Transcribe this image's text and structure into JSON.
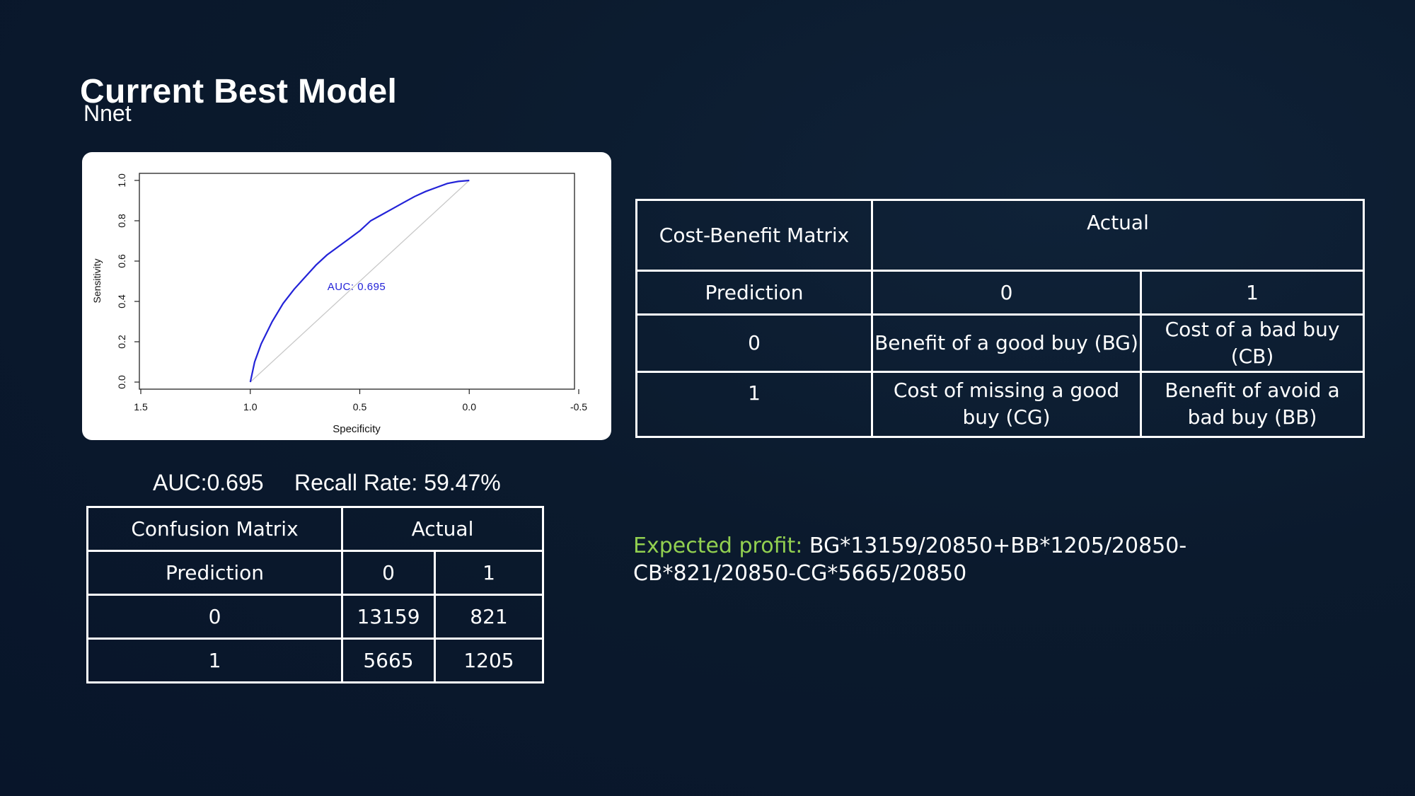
{
  "page": {
    "title": "Current Best Model",
    "subtitle": "Nnet"
  },
  "chart_data": {
    "type": "line",
    "xlabel": "Specificity",
    "ylabel": "Sensitivity",
    "xlim": [
      1.5,
      -0.5
    ],
    "ylim": [
      0.0,
      1.0
    ],
    "x_reversed": true,
    "x_ticks": [
      1.5,
      1.0,
      0.5,
      0.0,
      -0.5
    ],
    "x_tick_labels": [
      "1.5",
      "1.0",
      "0.5",
      "0.0",
      "-0.5"
    ],
    "y_ticks": [
      0.0,
      0.2,
      0.4,
      0.6,
      0.8,
      1.0
    ],
    "y_tick_labels": [
      "0.0",
      "0.2",
      "0.4",
      "0.6",
      "0.8",
      "1.0"
    ],
    "grid": false,
    "annotation": "AUC: 0.695",
    "line_color": "#2323d8",
    "diagonal_color": "#c8c8c8",
    "series": [
      {
        "x": [
          1.0,
          0.98,
          0.95,
          0.9,
          0.85,
          0.8,
          0.75,
          0.7,
          0.65,
          0.6,
          0.55,
          0.5,
          0.45,
          0.4,
          0.35,
          0.3,
          0.25,
          0.2,
          0.15,
          0.1,
          0.05,
          0.0
        ],
        "y": [
          0.0,
          0.1,
          0.19,
          0.3,
          0.39,
          0.46,
          0.52,
          0.58,
          0.63,
          0.67,
          0.71,
          0.75,
          0.8,
          0.83,
          0.86,
          0.89,
          0.92,
          0.945,
          0.965,
          0.985,
          0.995,
          1.0
        ]
      }
    ]
  },
  "metrics": {
    "auc": "AUC:0.695",
    "recall": "Recall Rate: 59.47%"
  },
  "confusion_matrix": {
    "title": "Confusion Matrix",
    "actual": "Actual",
    "prediction": "Prediction",
    "col_labels": [
      "0",
      "1"
    ],
    "rows": [
      {
        "label": "0",
        "values": [
          "13159",
          "821"
        ]
      },
      {
        "label": "1",
        "values": [
          "5665",
          "1205"
        ]
      }
    ]
  },
  "cost_benefit_matrix": {
    "title": "Cost-Benefit Matrix",
    "actual": "Actual",
    "prediction": "Prediction",
    "col_labels": [
      "0",
      "1"
    ],
    "rows": [
      {
        "label": "0",
        "values": [
          "Benefit of a good buy (BG)",
          "Cost of a bad buy (CB)"
        ]
      },
      {
        "label": "1",
        "values": [
          "Cost of missing a good buy (CG)",
          "Benefit of avoid a bad buy (BB)"
        ]
      }
    ]
  },
  "profit": {
    "label": "Expected profit:",
    "formula": "BG*13159/20850+BB*1205/20850-CB*821/20850-CG*5665/20850"
  }
}
